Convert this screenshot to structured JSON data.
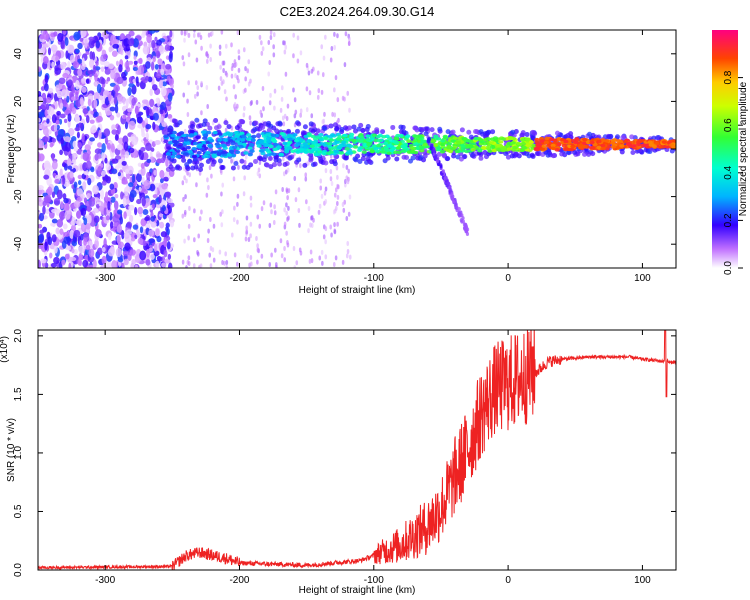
{
  "title": "C2E3.2024.264.09.30.G14",
  "chart_data": [
    {
      "type": "heatmap",
      "xlabel": "Height of straight line (km)",
      "ylabel": "Frequency (Hz)",
      "xlim": [
        -350,
        125
      ],
      "ylim": [
        -50,
        50
      ],
      "xticks": [
        "-300",
        "-200",
        "-100",
        "0",
        "100"
      ],
      "xtick_values": [
        -300,
        -200,
        -100,
        0,
        100
      ],
      "yticks": [
        "-40",
        "-20",
        "0",
        "20",
        "40"
      ],
      "ytick_values": [
        -40,
        -20,
        0,
        20,
        40
      ],
      "colorbar": {
        "label": "Normalized spectral amplitude",
        "range": [
          0,
          1
        ],
        "ticks": [
          "0.0",
          "0.2",
          "0.4",
          "0.6",
          "0.8"
        ],
        "tick_values": [
          0,
          0.2,
          0.4,
          0.6,
          0.8
        ],
        "colormap": "rainbow (white-purple-blue-cyan-green-yellow-orange-red-magenta)"
      },
      "features": {
        "noise_region_x": [
          -350,
          -250
        ],
        "scattered_noise_x": [
          -240,
          -120
        ],
        "signal_band_x": [
          -255,
          125
        ],
        "signal_frequency_hz": 2,
        "band_halfwidth_start_hz": 8,
        "band_halfwidth_end_hz": 2,
        "dipping_branch": {
          "x": [
            -60,
            -30
          ],
          "frequency_hz": [
            5,
            -35
          ]
        }
      },
      "grid": false
    },
    {
      "type": "line",
      "xlabel": "Height of straight line (km)",
      "ylabel": "SNR (10 * v/v)",
      "y_multiplier_label": "(x10",
      "y_multiplier_exp": "4",
      "y_multiplier_close": ")",
      "xlim": [
        -350,
        125
      ],
      "ylim": [
        0,
        2.05
      ],
      "xticks": [
        "-300",
        "-200",
        "-100",
        "0",
        "100"
      ],
      "xtick_values": [
        -300,
        -200,
        -100,
        0,
        100
      ],
      "yticks": [
        "0.0",
        "0.5",
        "1.0",
        "1.5",
        "2.0"
      ],
      "ytick_values": [
        0,
        0.5,
        1.0,
        1.5,
        2.0
      ],
      "series": [
        {
          "color": "#ee2222",
          "key_points": {
            "x": [
              -350,
              -250,
              -240,
              -230,
              -210,
              -200,
              -150,
              -110,
              -80,
              -60,
              -50,
              -40,
              -30,
              -20,
              -10,
              0,
              10,
              20,
              30,
              40,
              60,
              90,
              100,
              110,
              115,
              118,
              120,
              125
            ],
            "y": [
              0.02,
              0.03,
              0.12,
              0.15,
              0.1,
              0.06,
              0.04,
              0.08,
              0.2,
              0.35,
              0.5,
              0.75,
              1.0,
              1.3,
              1.5,
              1.55,
              1.6,
              1.68,
              1.78,
              1.8,
              1.82,
              1.82,
              1.8,
              1.79,
              1.78,
              1.8,
              1.77,
              1.78
            ]
          },
          "notes": "noisy; oscillation amplitude grows strongly from -90 to 20 km; spike to 2.05 and dip to 1.48 near x=118"
        }
      ],
      "grid": false
    }
  ]
}
